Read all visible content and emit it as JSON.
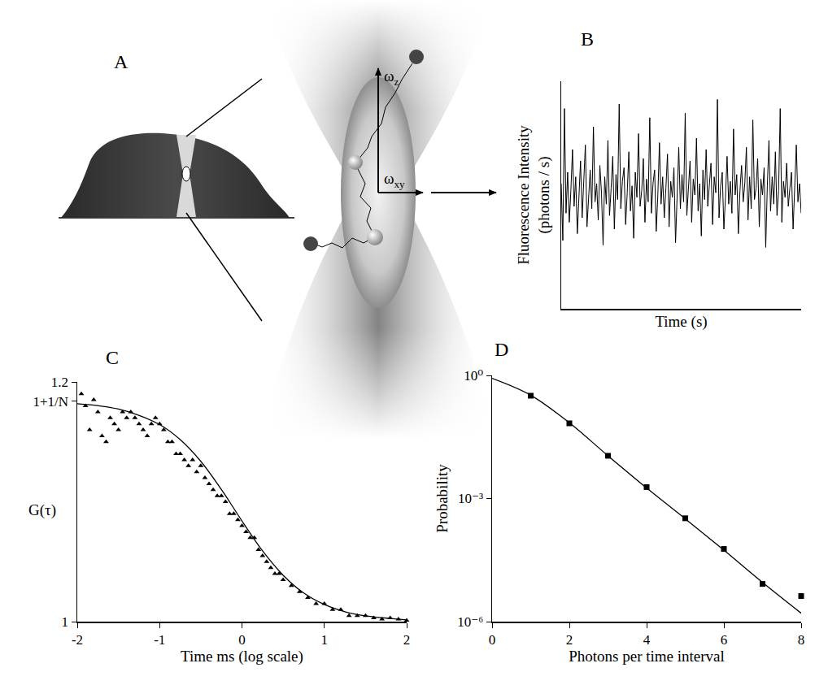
{
  "diagram": {
    "panel": "A",
    "axes": [
      {
        "symbol": "ω",
        "subscript": "z"
      },
      {
        "symbol": "ω",
        "subscript": "xy"
      }
    ]
  },
  "chart_data": [
    {
      "type": "line",
      "title": "B",
      "x_label": "Time (s)",
      "y_label": "Fluorescence Intensity (photons / s)",
      "tick_labels": false,
      "grid": false,
      "color": "#000000",
      "xlim": [
        0,
        149
      ],
      "ylim": [
        0,
        100
      ],
      "values": [
        55,
        30,
        88,
        42,
        60,
        38,
        52,
        70,
        45,
        58,
        33,
        49,
        65,
        40,
        57,
        72,
        36,
        50,
        61,
        44,
        80,
        47,
        55,
        39,
        63,
        51,
        28,
        58,
        46,
        74,
        41,
        53,
        67,
        35,
        59,
        48,
        90,
        44,
        56,
        62,
        37,
        51,
        69,
        43,
        54,
        31,
        60,
        49,
        77,
        45,
        52,
        66,
        38,
        57,
        47,
        84,
        42,
        55,
        61,
        34,
        50,
        73,
        46,
        58,
        40,
        53,
        68,
        36,
        56,
        49,
        62,
        29,
        54,
        71,
        44,
        59,
        47,
        86,
        41,
        52,
        65,
        38,
        57,
        50,
        75,
        43,
        55,
        32,
        61,
        48,
        70,
        45,
        53,
        64,
        37,
        58,
        51,
        92,
        40,
        54,
        60,
        35,
        49,
        67,
        46,
        56,
        42,
        79,
        50,
        59,
        33,
        52,
        63,
        47,
        55,
        71,
        39,
        58,
        44,
        83,
        48,
        53,
        66,
        36,
        57,
        50,
        62,
        27,
        54,
        74,
        43,
        58,
        46,
        69,
        41,
        52,
        88,
        38,
        56,
        49,
        64,
        45,
        53,
        60,
        35,
        51,
        72,
        47,
        55,
        42
      ]
    },
    {
      "type": "scatter",
      "title": "C",
      "x_label": "Time ms (log scale)",
      "y_label": "G(τ)",
      "grid": false,
      "xlim": [
        -2,
        2
      ],
      "xticks": [
        -2,
        -1,
        0,
        1,
        2
      ],
      "ylim": [
        1,
        1.2
      ],
      "yticks": [
        1,
        {
          "value": 1.184,
          "label": "1+1/N"
        },
        1.2
      ],
      "series": [
        {
          "type": "scatter",
          "marker": "triangle",
          "color": "#000000",
          "x": [
            -1.95,
            -1.9,
            -1.85,
            -1.8,
            -1.75,
            -1.7,
            -1.65,
            -1.6,
            -1.55,
            -1.5,
            -1.45,
            -1.4,
            -1.35,
            -1.3,
            -1.25,
            -1.2,
            -1.15,
            -1.1,
            -1.05,
            -1.0,
            -0.95,
            -0.9,
            -0.85,
            -0.8,
            -0.75,
            -0.7,
            -0.65,
            -0.6,
            -0.55,
            -0.5,
            -0.45,
            -0.4,
            -0.35,
            -0.3,
            -0.25,
            -0.2,
            -0.15,
            -0.1,
            -0.05,
            0,
            0.05,
            0.1,
            0.15,
            0.2,
            0.25,
            0.3,
            0.35,
            0.4,
            0.45,
            0.5,
            0.6,
            0.7,
            0.8,
            0.9,
            1.0,
            1.1,
            1.2,
            1.3,
            1.4,
            1.5,
            1.6,
            1.7,
            1.8,
            1.9,
            2.0
          ],
          "values": [
            1.19,
            1.18,
            1.16,
            1.185,
            1.175,
            1.155,
            1.15,
            1.17,
            1.165,
            1.16,
            1.175,
            1.17,
            1.175,
            1.17,
            1.165,
            1.16,
            1.155,
            1.165,
            1.17,
            1.165,
            1.16,
            1.15,
            1.15,
            1.14,
            1.14,
            1.135,
            1.13,
            1.135,
            1.125,
            1.13,
            1.12,
            1.115,
            1.11,
            1.105,
            1.105,
            1.1,
            1.09,
            1.09,
            1.085,
            1.08,
            1.075,
            1.07,
            1.07,
            1.06,
            1.055,
            1.05,
            1.045,
            1.04,
            1.04,
            1.035,
            1.03,
            1.025,
            1.02,
            1.015,
            1.015,
            1.01,
            1.01,
            1.005,
            1.005,
            1.005,
            1.003,
            1.002,
            1.003,
            1.002,
            1.001
          ]
        },
        {
          "type": "line",
          "line_style": "solid",
          "color": "#000000",
          "x": [
            -2,
            -1.5,
            -1,
            -0.75,
            -0.5,
            -0.25,
            0,
            0.25,
            0.5,
            0.75,
            1,
            1.25,
            1.5,
            2
          ],
          "values": [
            1.1818,
            1.1773,
            1.1644,
            1.1518,
            1.1337,
            1.1102,
            1.084,
            1.059,
            1.0387,
            1.0239,
            1.0143,
            1.0083,
            1.0048,
            1.0015
          ]
        }
      ]
    },
    {
      "type": "scatter",
      "title": "D",
      "x_label": "Photons per time interval",
      "y_label": "Probability",
      "log": "y",
      "grid": false,
      "xlim": [
        0,
        8
      ],
      "xticks": [
        0,
        2,
        4,
        6,
        8
      ],
      "ylim": [
        1e-06,
        1
      ],
      "yticks": [
        {
          "value": 1,
          "label": "10⁰"
        },
        {
          "value": 0.001,
          "label": "10⁻³"
        },
        {
          "value": 1e-06,
          "label": "10⁻⁶"
        }
      ],
      "series": [
        {
          "type": "scatter",
          "marker": "square",
          "color": "#000000",
          "x": [
            1,
            2,
            3,
            4,
            5,
            6,
            7,
            8
          ],
          "values": [
            0.32,
            0.068,
            0.011,
            0.0019,
            0.00033,
            5.9e-05,
            8.3e-06,
            4.2e-06
          ]
        },
        {
          "type": "line",
          "line_style": "solid",
          "color": "#000000",
          "x": [
            0,
            1,
            2,
            3,
            4,
            5,
            6,
            7,
            8
          ],
          "values": [
            0.85,
            0.33,
            0.07,
            0.011,
            0.0018,
            0.00032,
            5.5e-05,
            9e-06,
            1.6e-06
          ]
        }
      ]
    }
  ]
}
